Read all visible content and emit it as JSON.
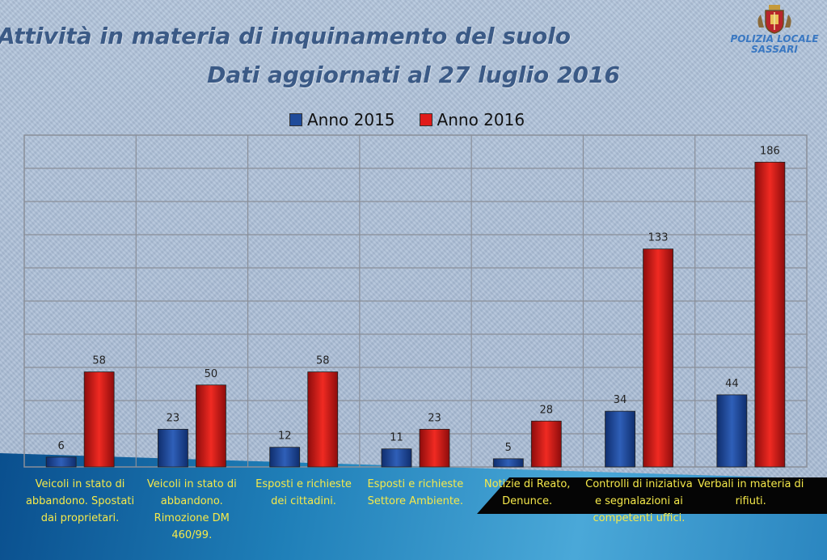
{
  "header": {
    "title_line1": "Attività in materia di inquinamento del suolo",
    "title_line2": "Dati aggiornati al 27 luglio 2016"
  },
  "logo": {
    "line1": "POLIZIA LOCALE",
    "line2": "SASSARI",
    "icon": "coat-of-arms-icon"
  },
  "colors": {
    "series_2015": "#1f4b9a",
    "series_2016": "#e01a1a",
    "category_text": "#f5e94a",
    "title": "#3b5a86"
  },
  "chart_data": {
    "type": "bar",
    "title": "Attività in materia di inquinamento del suolo",
    "subtitle": "Dati aggiornati al 27 luglio 2016",
    "categories": [
      "Veicoli in stato di abbandono. Spostati dai proprietari.",
      "Veicoli in stato di abbandono. Rimozione DM 460/99.",
      "Esposti e richieste dei cittadini.",
      "Esposti e richieste Settore Ambiente.",
      "Notizie di Reato, Denunce.",
      "Controlli di iniziativa e segnalazioni ai competenti uffici.",
      "Verbali in materia di rifiuti."
    ],
    "series": [
      {
        "name": "Anno 2015",
        "values": [
          6,
          23,
          12,
          11,
          5,
          34,
          44
        ]
      },
      {
        "name": "Anno 2016",
        "values": [
          58,
          50,
          58,
          23,
          28,
          133,
          186
        ]
      }
    ],
    "ylim": [
      0,
      200
    ],
    "grid": true,
    "legend": "top-center",
    "xlabel": "",
    "ylabel": ""
  }
}
